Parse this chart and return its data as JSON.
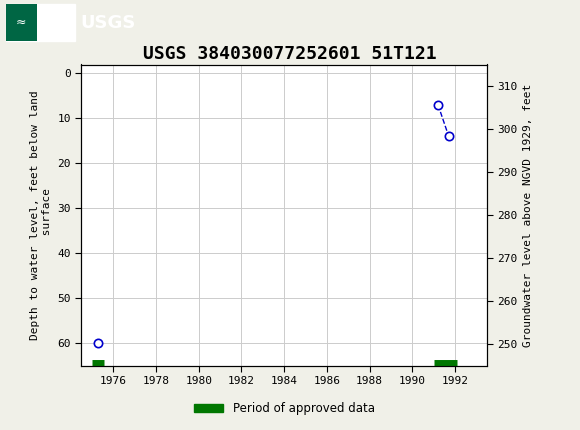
{
  "title": "USGS 384030077252601 51T121",
  "header_color": "#006644",
  "left_ylabel": "Depth to water level, feet below land\n surface",
  "right_ylabel": "Groundwater level above NGVD 1929, feet",
  "xlim": [
    1974.5,
    1993.5
  ],
  "ylim_left": [
    65,
    -2
  ],
  "ylim_right": [
    245,
    315
  ],
  "xticks": [
    1976,
    1978,
    1980,
    1982,
    1984,
    1986,
    1988,
    1990,
    1992
  ],
  "yticks_left": [
    0,
    10,
    20,
    30,
    40,
    50,
    60
  ],
  "yticks_right": [
    250,
    260,
    270,
    280,
    290,
    300,
    310
  ],
  "data_points_x": [
    1975.3,
    1991.2,
    1991.7
  ],
  "data_points_y": [
    60,
    7,
    14
  ],
  "period_bars": [
    {
      "x_start": 1975.0,
      "x_end": 1975.55,
      "y": 64.5
    },
    {
      "x_start": 1991.0,
      "x_end": 1992.1,
      "y": 64.5
    }
  ],
  "point_color": "#0000cc",
  "line_color": "#0000cc",
  "period_color": "#007700",
  "background_color": "#f0f0e8",
  "plot_bg_color": "#ffffff",
  "grid_color": "#cccccc",
  "title_fontsize": 13,
  "axis_fontsize": 8,
  "tick_fontsize": 8,
  "legend_label": "Period of approved data"
}
